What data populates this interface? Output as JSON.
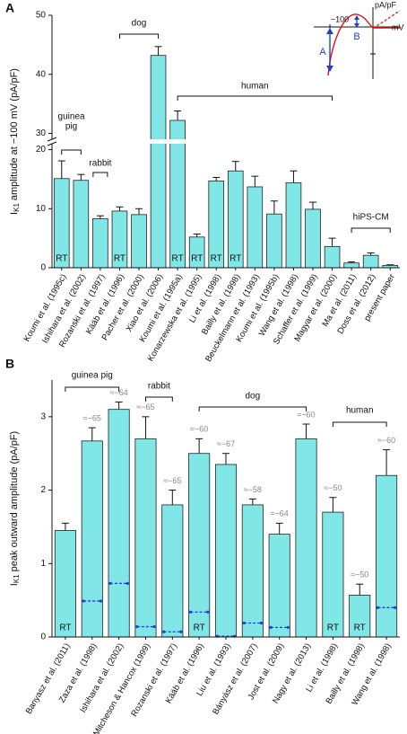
{
  "chart_data": [
    {
      "type": "bar",
      "panel_label": "A",
      "ylabel": {
        "symbol": "I",
        "subscript": "K1",
        "text": "amplitude at −100 mV (pA/pF)"
      },
      "categories": [
        "Koumi et al. (1995c)",
        "Ishihara et al. (2002)",
        "Rozanski et al. (1997)",
        "Kääb et al. (1996)",
        "Pacher et al. (2000)",
        "Xiao et al. (2006)",
        "Koumi et al. (1995a)",
        "Konarzewska et al. (1995)",
        "Li et al. (1998)",
        "Bailly et al. (1998)",
        "Beuckelmann et al. (1993)",
        "Koumi et al. (1995b)",
        "Wang et al. (1998)",
        "Schaffer et al. (1999)",
        "Magyar et al. (2000)",
        "Ma et al. (2011)",
        "Doss et al. (2012)",
        "present paper"
      ],
      "values": [
        15.1,
        14.8,
        8.3,
        9.6,
        9.0,
        43.2,
        32.2,
        5.2,
        14.7,
        16.4,
        13.7,
        9.1,
        14.4,
        9.9,
        3.6,
        0.8,
        2.1,
        0.4
      ],
      "errors": [
        3.0,
        1.0,
        0.5,
        0.7,
        1.0,
        1.5,
        1.6,
        0.5,
        0.6,
        1.6,
        1.8,
        2.2,
        2.0,
        1.2,
        1.4,
        0.2,
        0.4,
        0.1
      ],
      "bar_labels": [
        "RT",
        null,
        null,
        "RT",
        null,
        null,
        "RT",
        "RT",
        "RT",
        "RT",
        null,
        null,
        null,
        null,
        null,
        null,
        null,
        null
      ],
      "color": "#80e6e6",
      "ylim": [
        0,
        50
      ],
      "yticks": [
        0,
        10,
        20,
        30,
        40,
        50
      ],
      "y_break": [
        21,
        29
      ],
      "groups": [
        [
          "guinea",
          "pig"
        ],
        [
          "rabbit"
        ],
        [
          "dog"
        ],
        [
          "human"
        ],
        [
          "hiPS-CM"
        ]
      ],
      "inset": {
        "x_tick": "−100",
        "y_unit": "pA/pF",
        "x_unit": "mV",
        "marker_a": "A",
        "marker_b": "B"
      }
    },
    {
      "type": "bar",
      "panel_label": "B",
      "ylabel": {
        "symbol": "I",
        "subscript": "K1",
        "text": "peak outward amplitude (pA/pF)"
      },
      "categories": [
        "Banyasz et al. (2011)",
        "Zaza et al. (1998)",
        "Ishihara et al. (2002)",
        "Mitcheson & Hancox (1999)",
        "Rozanski et al. (1997)",
        "Kääb et al. (1996)",
        "Liu et al. (1993)",
        "Bányász et al. (2007)",
        "Jost et al. (2009)",
        "Nagy et al. (2013)",
        "Li et al. (1998)",
        "Bailly et al. (1998)",
        "Wang et al. (1998)"
      ],
      "values": [
        1.45,
        2.67,
        3.1,
        2.7,
        1.8,
        2.5,
        2.35,
        1.8,
        1.4,
        2.7,
        1.7,
        0.57,
        2.2
      ],
      "errors": [
        0.1,
        0.18,
        0.1,
        0.3,
        0.2,
        0.2,
        0.15,
        0.08,
        0.15,
        0.2,
        0.2,
        0.15,
        0.35
      ],
      "bar_labels": [
        "RT",
        null,
        null,
        null,
        null,
        "RT",
        null,
        null,
        null,
        null,
        "RT",
        "RT",
        null
      ],
      "peak_labels": [
        null,
        "≈−65",
        "≈−64",
        "≈−65",
        "≈−65",
        "≈−60",
        "≈−67",
        "≈−58",
        "≈−64",
        "≈−60",
        "≈−50",
        "≈−50",
        "≈−60"
      ],
      "markers": {
        "color": "#2040d0",
        "values": [
          null,
          0.49,
          0.73,
          0.14,
          0.07,
          0.34,
          0.01,
          0.19,
          0.13,
          null,
          null,
          null,
          0.4
        ]
      },
      "color": "#80e6e6",
      "ylim": [
        0,
        3.5
      ],
      "yticks": [
        0,
        1,
        2,
        3
      ],
      "groups": [
        [
          "guinea pig"
        ],
        [
          "rabbit"
        ],
        [
          "dog"
        ],
        [
          "human"
        ]
      ]
    }
  ]
}
